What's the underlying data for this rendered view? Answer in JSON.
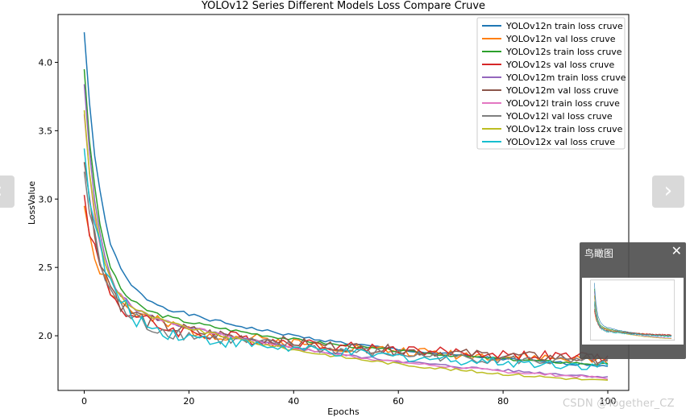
{
  "chart_data": {
    "type": "line",
    "title": "YOLOv12 Series Different Models Loss Compare Cruve",
    "xlabel": "Epochs",
    "ylabel": "LossValue",
    "xlim": [
      -5,
      104
    ],
    "ylim": [
      1.6,
      4.35
    ],
    "xticks": [
      0,
      20,
      40,
      60,
      80,
      100
    ],
    "yticks": [
      2.0,
      2.5,
      3.0,
      3.5,
      4.0
    ],
    "grid": false,
    "legend_position": "top-right",
    "epochs": 100,
    "series": [
      {
        "name": "YOLOv12n train loss cruve",
        "color": "#1f77b4",
        "start": 4.22,
        "end": 1.78,
        "k": 0.32,
        "tail": 0.6,
        "noise": 0.01,
        "seed": 1
      },
      {
        "name": "YOLOv12n val loss cruve",
        "color": "#ff7f0e",
        "start": 2.95,
        "end": 1.82,
        "k": 0.26,
        "tail": 0.35,
        "noise": 0.035,
        "seed": 2
      },
      {
        "name": "YOLOv12s train loss cruve",
        "color": "#2ca02c",
        "start": 3.95,
        "end": 1.79,
        "k": 0.36,
        "tail": 0.5,
        "noise": 0.01,
        "seed": 3
      },
      {
        "name": "YOLOv12s val loss cruve",
        "color": "#d62728",
        "start": 3.03,
        "end": 1.84,
        "k": 0.28,
        "tail": 0.3,
        "noise": 0.035,
        "seed": 4
      },
      {
        "name": "YOLOv12m train loss cruve",
        "color": "#9467bd",
        "start": 3.84,
        "end": 1.7,
        "k": 0.38,
        "tail": 0.58,
        "noise": 0.01,
        "seed": 5
      },
      {
        "name": "YOLOv12m val loss cruve",
        "color": "#8c564b",
        "start": 3.27,
        "end": 1.83,
        "k": 0.3,
        "tail": 0.33,
        "noise": 0.035,
        "seed": 6
      },
      {
        "name": "YOLOv12l train loss cruve",
        "color": "#e377c2",
        "start": 3.62,
        "end": 1.69,
        "k": 0.38,
        "tail": 0.6,
        "noise": 0.01,
        "seed": 7
      },
      {
        "name": "YOLOv12l val loss cruve",
        "color": "#7f7f7f",
        "start": 3.2,
        "end": 1.8,
        "k": 0.3,
        "tail": 0.33,
        "noise": 0.035,
        "seed": 8
      },
      {
        "name": "YOLOv12x train loss cruve",
        "color": "#bcbd22",
        "start": 3.65,
        "end": 1.67,
        "k": 0.38,
        "tail": 0.62,
        "noise": 0.01,
        "seed": 9
      },
      {
        "name": "YOLOv12x val loss cruve",
        "color": "#17becf",
        "start": 3.37,
        "end": 1.78,
        "k": 0.28,
        "tail": 0.34,
        "noise": 0.035,
        "seed": 10
      }
    ]
  },
  "ui": {
    "prev_icon": "‹",
    "next_icon": "›",
    "birdseye_title": "鸟瞰图",
    "close_icon": "✕",
    "watermark": "CSDN @Together_CZ"
  }
}
